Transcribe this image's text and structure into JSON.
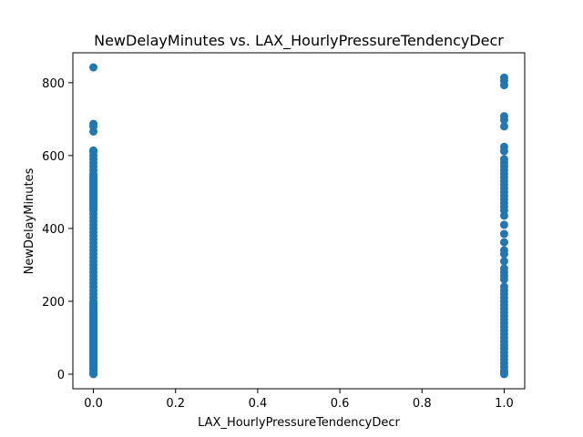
{
  "chart_data": {
    "type": "scatter",
    "title": "NewDelayMinutes vs. LAX_HourlyPressureTendencyDecr",
    "xlabel": "LAX_HourlyPressureTendencyDecr",
    "ylabel": "NewDelayMinutes",
    "xlim": [
      -0.05,
      1.05
    ],
    "ylim": [
      -40,
      882
    ],
    "xticks": [
      0.0,
      0.2,
      0.4,
      0.6,
      0.8,
      1.0
    ],
    "xtick_labels": [
      "0.0",
      "0.2",
      "0.4",
      "0.6",
      "0.8",
      "1.0"
    ],
    "yticks": [
      0,
      200,
      400,
      600,
      800
    ],
    "ytick_labels": [
      "0",
      "200",
      "400",
      "600",
      "800"
    ],
    "grid": false,
    "marker_color": "#1f77b4",
    "series": [
      {
        "x_value": 0,
        "values": [
          842,
          687,
          680,
          666,
          614,
          610,
          600,
          590,
          580,
          570,
          560,
          550,
          545,
          540,
          535,
          530,
          525,
          520,
          515,
          510,
          505,
          500,
          495,
          490,
          485,
          480,
          475,
          470,
          465,
          460,
          455,
          450,
          440,
          430,
          420,
          410,
          400,
          390,
          380,
          370,
          360,
          350,
          340,
          330,
          320,
          310,
          300,
          290,
          280,
          270,
          260,
          250,
          240,
          230,
          220,
          210,
          200,
          195,
          190,
          185,
          180,
          175,
          170,
          165,
          160,
          155,
          150,
          145,
          140,
          135,
          130,
          125,
          120,
          115,
          110,
          105,
          100,
          95,
          90,
          85,
          80,
          75,
          70,
          65,
          60,
          55,
          50,
          45,
          40,
          35,
          30,
          25,
          20,
          15,
          10,
          5,
          2,
          0
        ]
      },
      {
        "x_value": 1,
        "values": [
          814,
          805,
          793,
          708,
          698,
          680,
          624,
          612,
          590,
          580,
          570,
          560,
          550,
          540,
          530,
          520,
          510,
          500,
          490,
          480,
          470,
          460,
          450,
          435,
          410,
          385,
          362,
          340,
          330,
          310,
          290,
          280,
          270,
          260,
          240,
          230,
          220,
          210,
          200,
          190,
          180,
          170,
          160,
          150,
          140,
          130,
          120,
          110,
          100,
          90,
          80,
          70,
          60,
          50,
          40,
          30,
          20,
          10,
          5,
          0
        ]
      }
    ]
  }
}
